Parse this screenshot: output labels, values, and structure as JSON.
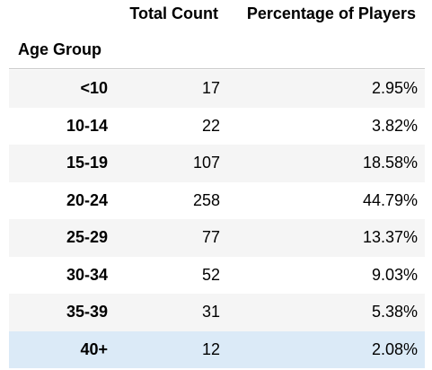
{
  "table": {
    "index_header": "Age Group",
    "columns": [
      "Total Count",
      "Percentage of Players"
    ],
    "rows": [
      {
        "group": "<10",
        "count": "17",
        "pct": "2.95%"
      },
      {
        "group": "10-14",
        "count": "22",
        "pct": "3.82%"
      },
      {
        "group": "15-19",
        "count": "107",
        "pct": "18.58%"
      },
      {
        "group": "20-24",
        "count": "258",
        "pct": "44.79%"
      },
      {
        "group": "25-29",
        "count": "77",
        "pct": "13.37%"
      },
      {
        "group": "30-34",
        "count": "52",
        "pct": "9.03%"
      },
      {
        "group": "35-39",
        "count": "31",
        "pct": "5.38%"
      },
      {
        "group": "40+",
        "count": "12",
        "pct": "2.08%"
      }
    ],
    "colors": {
      "stripe": "#f5f5f5",
      "highlight": "#dbeaf7",
      "rule": "#c9c9c9"
    }
  }
}
